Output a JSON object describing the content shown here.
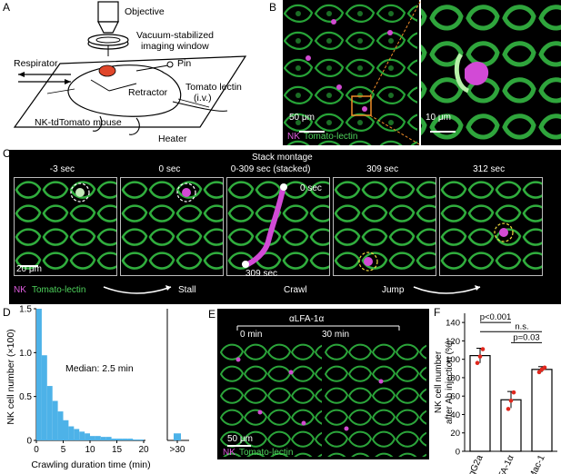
{
  "panel_letters": {
    "a": "A",
    "b": "B",
    "c": "C",
    "d": "D",
    "e": "E",
    "f": "F"
  },
  "panel_a": {
    "objective": "Objective",
    "window_line1": "Vacuum-stabilized",
    "window_line2": "imaging window",
    "respirator": "Respirator",
    "pin": "Pin",
    "retractor": "Retractor",
    "lectin_line1": "Tomato lectin",
    "lectin_line2": "(i.v.)",
    "mouse": "NK-tdTomato mouse",
    "heater": "Heater"
  },
  "panel_b": {
    "scale_left": "50 μm",
    "scale_right": "10 μm",
    "legend_nk": "NK",
    "legend_lectin": "Tomato-lectin"
  },
  "panel_c": {
    "montage_title": "Stack montage",
    "frames": [
      {
        "label": "-3 sec"
      },
      {
        "label": "0 sec"
      },
      {
        "label": "0-309 sec (stacked)"
      },
      {
        "label": "309 sec"
      },
      {
        "label": "312 sec"
      }
    ],
    "inset_start": "0 sec",
    "inset_end": "309 sec",
    "scale": "20 μm",
    "legend_nk": "NK",
    "legend_lectin": "Tomato-lectin",
    "stages": [
      "Stall",
      "Crawl",
      "Jump"
    ]
  },
  "panel_e": {
    "treatment": "αLFA-1α",
    "time_left": "0 min",
    "time_right": "30 min",
    "scale": "50 μm",
    "legend_nk": "NK",
    "legend_lectin": "Tomato-lectin"
  },
  "chart_data": [
    {
      "type": "bar",
      "panel": "D",
      "xlabel": "Crawling duration time (min)",
      "ylabel": "NK cell number (×100)",
      "annotation": "Median: 2.5 min",
      "bin_width_min": 1,
      "bin_starts": [
        1,
        2,
        3,
        4,
        5,
        6,
        7,
        8,
        9,
        10,
        11,
        12,
        13,
        14,
        15,
        16,
        17,
        18,
        19,
        20
      ],
      "values": [
        1.5,
        0.97,
        0.62,
        0.45,
        0.33,
        0.23,
        0.16,
        0.13,
        0.1,
        0.08,
        0.05,
        0.05,
        0.04,
        0.04,
        0.02,
        0.02,
        0.02,
        0.02,
        0.01,
        0.01
      ],
      "overflow_category": ">30",
      "overflow_value": 0.08,
      "xlim": [
        0,
        20
      ],
      "ylim": [
        0,
        1.5
      ],
      "x_ticks": [
        "0",
        "5",
        "10",
        "15",
        "20",
        ">30"
      ],
      "y_ticks": [
        "0",
        "0.5",
        "1.0",
        "1.5"
      ],
      "bar_color": "#4db2e8"
    },
    {
      "type": "bar",
      "panel": "F",
      "categories": [
        "IgG2a",
        "αLFA-1α",
        "αMac-1"
      ],
      "values": [
        104,
        56,
        89
      ],
      "errors": [
        8,
        9,
        3
      ],
      "points": [
        [
          96,
          103,
          111
        ],
        [
          46,
          55,
          64
        ],
        [
          86,
          89,
          91
        ]
      ],
      "ylabel_line1": "NK cell number",
      "ylabel_line2": "after Ab injection (%)",
      "ylim": [
        0,
        150
      ],
      "y_ticks": [
        "0",
        "20",
        "40",
        "60",
        "80",
        "100",
        "120",
        "140"
      ],
      "comparisons": [
        {
          "from": 0,
          "to": 1,
          "label": "p<0.001"
        },
        {
          "from": 0,
          "to": 2,
          "label": "n.s."
        },
        {
          "from": 1,
          "to": 2,
          "label": "p=0.03"
        }
      ],
      "point_color": "#e0281e"
    }
  ]
}
